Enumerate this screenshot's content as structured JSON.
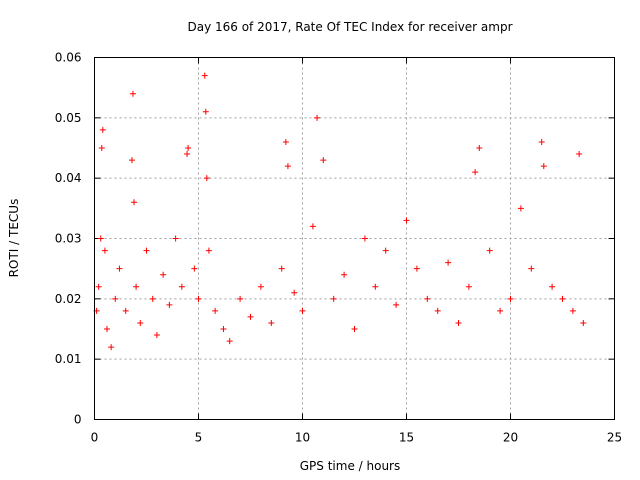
{
  "chart_data": {
    "type": "scatter",
    "title": "Day 166 of 2017, Rate Of TEC Index for receiver ampr",
    "xlabel": "GPS time / hours",
    "ylabel": "ROTI / TECUs",
    "xlim": [
      0,
      25
    ],
    "ylim": [
      0,
      0.06
    ],
    "x_ticks": [
      0,
      5,
      10,
      15,
      20,
      25
    ],
    "x_tick_labels": [
      "0",
      "5",
      "10",
      "15",
      "20",
      "25"
    ],
    "y_ticks": [
      0,
      0.01,
      0.02,
      0.03,
      0.04,
      0.05,
      0.06
    ],
    "y_tick_labels": [
      "0",
      "0.01",
      "0.02",
      "0.03",
      "0.04",
      "0.05",
      "0.06"
    ],
    "grid": true,
    "legend": "none",
    "marker": "plus",
    "color": "#ff0000",
    "series": [
      {
        "x": [
          0.1,
          0.2,
          0.3,
          0.35,
          0.4,
          0.5,
          0.6,
          0.8,
          1.0,
          1.2,
          1.5,
          1.8,
          1.85,
          1.9,
          2.0,
          2.2,
          2.5,
          2.8,
          3.0,
          3.3,
          3.6,
          3.9,
          4.2,
          4.45,
          4.5,
          4.8,
          5.0,
          5.3,
          5.35,
          5.4,
          5.5,
          5.8,
          6.2,
          6.5,
          7.0,
          7.5,
          8.0,
          8.5,
          9.0,
          9.2,
          9.3,
          9.6,
          10.0,
          10.5,
          10.7,
          11.0,
          11.5,
          12.0,
          12.5,
          13.0,
          13.5,
          14.0,
          14.5,
          15.0,
          15.5,
          16.0,
          16.5,
          17.0,
          17.5,
          18.0,
          18.3,
          18.5,
          19.0,
          19.5,
          20.0,
          20.5,
          21.0,
          21.5,
          21.6,
          22.0,
          22.5,
          23.0,
          23.3,
          23.5
        ],
        "y": [
          0.018,
          0.022,
          0.03,
          0.045,
          0.048,
          0.028,
          0.015,
          0.012,
          0.02,
          0.025,
          0.018,
          0.043,
          0.054,
          0.036,
          0.022,
          0.016,
          0.028,
          0.02,
          0.014,
          0.024,
          0.019,
          0.03,
          0.022,
          0.044,
          0.045,
          0.025,
          0.02,
          0.057,
          0.051,
          0.04,
          0.028,
          0.018,
          0.015,
          0.013,
          0.02,
          0.017,
          0.022,
          0.016,
          0.025,
          0.046,
          0.042,
          0.021,
          0.018,
          0.032,
          0.05,
          0.043,
          0.02,
          0.024,
          0.015,
          0.03,
          0.022,
          0.028,
          0.019,
          0.033,
          0.025,
          0.02,
          0.018,
          0.026,
          0.016,
          0.022,
          0.041,
          0.045,
          0.028,
          0.018,
          0.02,
          0.035,
          0.025,
          0.046,
          0.042,
          0.022,
          0.02,
          0.018,
          0.044,
          0.016
        ]
      }
    ]
  }
}
